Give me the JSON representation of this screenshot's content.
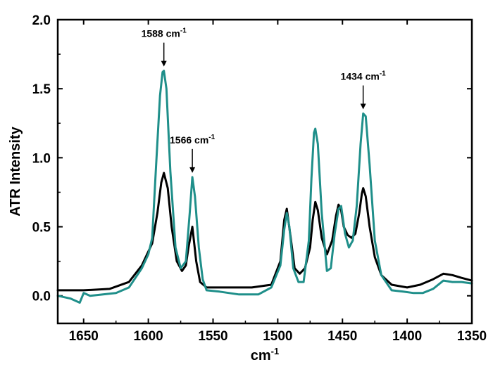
{
  "chart_data": {
    "type": "line",
    "xlabel": "cm",
    "xlabel_superscript": "-1",
    "ylabel": "ATR Intensity",
    "xlim": [
      1670,
      1350
    ],
    "ylim": [
      -0.2,
      2.0
    ],
    "x_reversed": true,
    "grid": false,
    "x_ticks": [
      1650,
      1600,
      1550,
      1500,
      1450,
      1400,
      1350
    ],
    "y_ticks": [
      0.0,
      0.5,
      1.0,
      1.5,
      2.0
    ],
    "x_tick_labels": [
      "1650",
      "1600",
      "1550",
      "1500",
      "1450",
      "1400",
      "1350"
    ],
    "y_tick_labels": [
      "0.0",
      "0.5",
      "1.0",
      "1.5",
      "2.0"
    ],
    "series": [
      {
        "color": "#000000",
        "x": [
          1670,
          1650,
          1630,
          1615,
          1605,
          1600,
          1597,
          1593,
          1590,
          1588,
          1585,
          1582,
          1578,
          1574,
          1571,
          1569,
          1566,
          1563,
          1560,
          1555,
          1540,
          1520,
          1505,
          1498,
          1495,
          1493,
          1490,
          1487,
          1483,
          1479,
          1475,
          1473,
          1471,
          1469,
          1466,
          1462,
          1458,
          1455,
          1453,
          1451,
          1449,
          1446,
          1443,
          1440,
          1437,
          1435,
          1434,
          1432,
          1429,
          1425,
          1420,
          1412,
          1400,
          1390,
          1380,
          1372,
          1365,
          1358,
          1350
        ],
        "y": [
          0.04,
          0.04,
          0.05,
          0.1,
          0.22,
          0.32,
          0.38,
          0.6,
          0.82,
          0.89,
          0.78,
          0.5,
          0.25,
          0.18,
          0.22,
          0.35,
          0.5,
          0.25,
          0.1,
          0.06,
          0.06,
          0.06,
          0.08,
          0.25,
          0.55,
          0.63,
          0.42,
          0.2,
          0.16,
          0.2,
          0.35,
          0.55,
          0.68,
          0.62,
          0.42,
          0.3,
          0.4,
          0.58,
          0.66,
          0.62,
          0.5,
          0.44,
          0.42,
          0.45,
          0.6,
          0.74,
          0.78,
          0.72,
          0.5,
          0.28,
          0.15,
          0.08,
          0.06,
          0.08,
          0.12,
          0.16,
          0.15,
          0.13,
          0.11
        ]
      },
      {
        "color": "#1f8f8a",
        "x": [
          1670,
          1660,
          1653,
          1650,
          1645,
          1635,
          1625,
          1615,
          1605,
          1600,
          1597,
          1594,
          1591,
          1589,
          1588,
          1586,
          1583,
          1579,
          1575,
          1571,
          1568,
          1566,
          1564,
          1561,
          1558,
          1555,
          1545,
          1530,
          1515,
          1505,
          1498,
          1495,
          1493,
          1491,
          1488,
          1484,
          1480,
          1476,
          1474,
          1472,
          1471,
          1469,
          1466,
          1462,
          1459,
          1456,
          1453,
          1451,
          1448,
          1445,
          1442,
          1439,
          1436,
          1434,
          1432,
          1429,
          1425,
          1420,
          1412,
          1403,
          1395,
          1388,
          1380,
          1372,
          1365,
          1358,
          1350
        ],
        "y": [
          0.0,
          -0.02,
          -0.05,
          0.02,
          0.0,
          0.01,
          0.02,
          0.06,
          0.2,
          0.3,
          0.42,
          0.95,
          1.45,
          1.62,
          1.63,
          1.5,
          0.9,
          0.35,
          0.2,
          0.25,
          0.6,
          0.86,
          0.72,
          0.35,
          0.12,
          0.04,
          0.03,
          0.01,
          0.01,
          0.06,
          0.22,
          0.48,
          0.6,
          0.5,
          0.2,
          0.1,
          0.1,
          0.4,
          0.85,
          1.18,
          1.21,
          1.1,
          0.6,
          0.18,
          0.2,
          0.45,
          0.63,
          0.65,
          0.45,
          0.35,
          0.4,
          0.65,
          1.1,
          1.32,
          1.3,
          0.95,
          0.4,
          0.15,
          0.04,
          0.03,
          0.02,
          0.02,
          0.05,
          0.11,
          0.1,
          0.1,
          0.09
        ]
      }
    ],
    "annotations": [
      {
        "text": "1588 cm",
        "sup": "-1",
        "x": 1588,
        "y": 1.63
      },
      {
        "text": "1566 cm",
        "sup": "-1",
        "x": 1566,
        "y": 0.86
      },
      {
        "text": "1434 cm",
        "sup": "-1",
        "x": 1434,
        "y": 1.32
      }
    ]
  }
}
